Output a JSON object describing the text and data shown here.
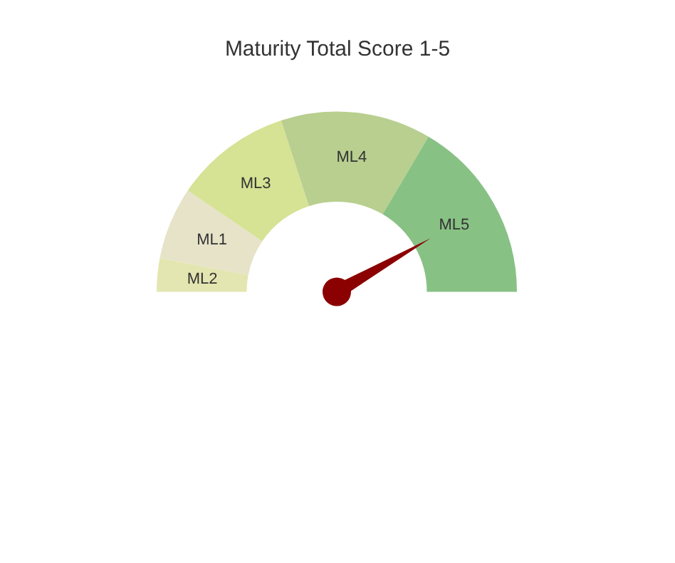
{
  "chart_data": {
    "type": "donut",
    "title": "Maturity Total Score 1-5",
    "categories": [
      "ML2",
      "ML1",
      "ML3",
      "ML4",
      "ML5"
    ],
    "values": [
      6,
      13,
      21,
      27,
      33
    ],
    "colors": [
      "#e3e6b0",
      "#e6e3c8",
      "#d6e294",
      "#b8cf8f",
      "#88c184"
    ],
    "needle": "ML5"
  }
}
